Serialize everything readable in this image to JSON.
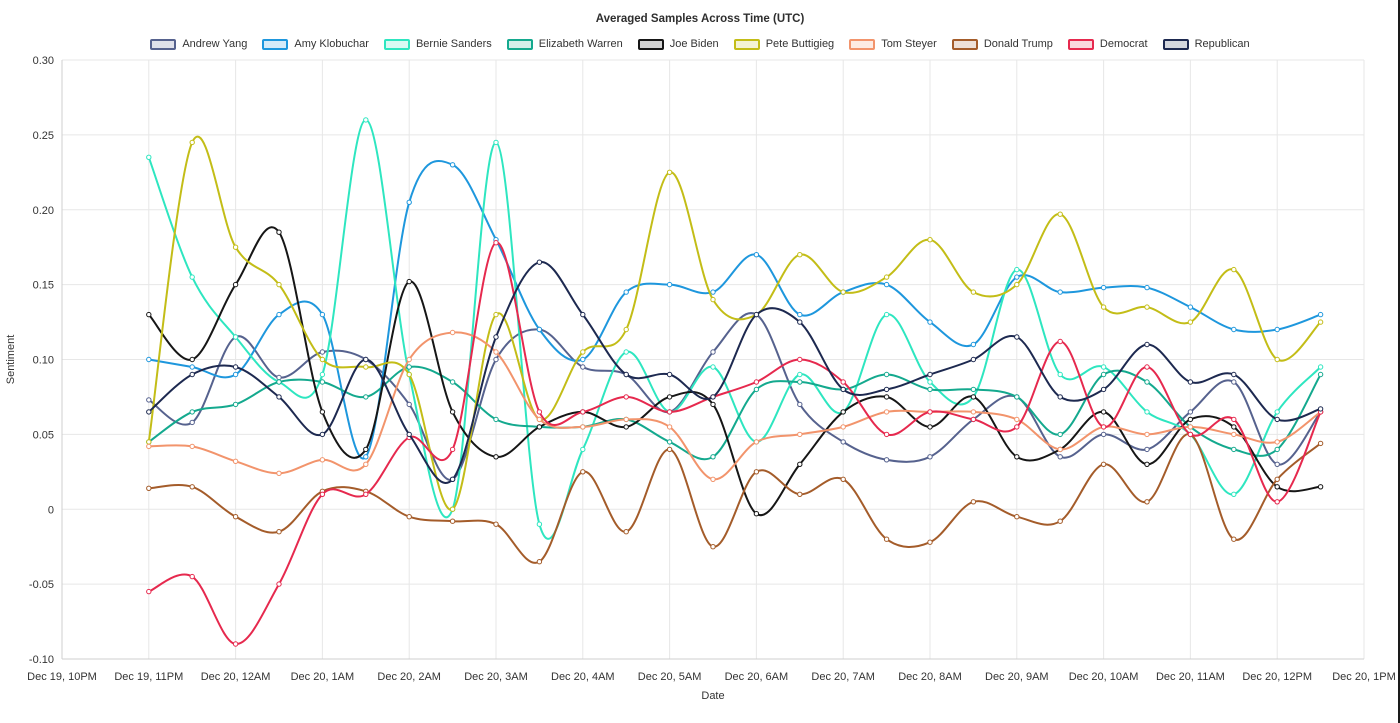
{
  "chart_data": {
    "type": "line",
    "title": "Averaged Samples Across Time (UTC)",
    "xlabel": "Date",
    "ylabel": "Sentiment",
    "ylim": [
      -0.1,
      0.3
    ],
    "grid": true,
    "legend_position": "top",
    "markers": true,
    "y_ticks": [
      {
        "value": 0.3,
        "label": "0.30"
      },
      {
        "value": 0.25,
        "label": "0.25"
      },
      {
        "value": 0.2,
        "label": "0.20"
      },
      {
        "value": 0.15,
        "label": "0.15"
      },
      {
        "value": 0.1,
        "label": "0.10"
      },
      {
        "value": 0.05,
        "label": "0.05"
      },
      {
        "value": 0.0,
        "label": "0"
      },
      {
        "value": -0.05,
        "label": "-0.05"
      },
      {
        "value": -0.1,
        "label": "-0.10"
      }
    ],
    "x_ticks": [
      {
        "hour": 22,
        "label": "Dec 19, 10PM"
      },
      {
        "hour": 23,
        "label": "Dec 19, 11PM"
      },
      {
        "hour": 24,
        "label": "Dec 20, 12AM"
      },
      {
        "hour": 25,
        "label": "Dec 20, 1AM"
      },
      {
        "hour": 26,
        "label": "Dec 20, 2AM"
      },
      {
        "hour": 27,
        "label": "Dec 20, 3AM"
      },
      {
        "hour": 28,
        "label": "Dec 20, 4AM"
      },
      {
        "hour": 29,
        "label": "Dec 20, 5AM"
      },
      {
        "hour": 30,
        "label": "Dec 20, 6AM"
      },
      {
        "hour": 31,
        "label": "Dec 20, 7AM"
      },
      {
        "hour": 32,
        "label": "Dec 20, 8AM"
      },
      {
        "hour": 33,
        "label": "Dec 20, 9AM"
      },
      {
        "hour": 34,
        "label": "Dec 20, 10AM"
      },
      {
        "hour": 35,
        "label": "Dec 20, 11AM"
      },
      {
        "hour": 36,
        "label": "Dec 20, 12PM"
      },
      {
        "hour": 37,
        "label": "Dec 20, 1PM"
      }
    ],
    "x_hours": [
      23,
      23.5,
      24,
      24.5,
      25,
      25.5,
      26,
      26.5,
      27,
      27.5,
      28,
      28.5,
      29,
      29.5,
      30,
      30.5,
      31,
      31.5,
      32,
      32.5,
      33,
      33.5,
      34,
      34.5,
      35,
      35.5,
      36,
      36.5
    ],
    "series": [
      {
        "name": "Andrew Yang",
        "color": "#56628e",
        "values": [
          0.073,
          0.058,
          0.115,
          0.088,
          0.105,
          0.1,
          0.07,
          0.02,
          0.1,
          0.12,
          0.095,
          0.09,
          0.065,
          0.105,
          0.13,
          0.07,
          0.045,
          0.033,
          0.035,
          0.06,
          0.075,
          0.035,
          0.05,
          0.04,
          0.065,
          0.085,
          0.03,
          0.065
        ]
      },
      {
        "name": "Amy Klobuchar",
        "color": "#1e97dd",
        "values": [
          0.1,
          0.095,
          0.09,
          0.13,
          0.13,
          0.035,
          0.205,
          0.23,
          0.18,
          0.12,
          0.1,
          0.145,
          0.15,
          0.145,
          0.17,
          0.13,
          0.145,
          0.15,
          0.125,
          0.11,
          0.155,
          0.145,
          0.148,
          0.148,
          0.135,
          0.12,
          0.12,
          0.13
        ]
      },
      {
        "name": "Bernie Sanders",
        "color": "#2ee6c0",
        "values": [
          0.235,
          0.155,
          0.115,
          0.085,
          0.09,
          0.26,
          0.09,
          0.0,
          0.245,
          -0.01,
          0.04,
          0.105,
          0.065,
          0.095,
          0.045,
          0.09,
          0.065,
          0.13,
          0.085,
          0.075,
          0.16,
          0.09,
          0.095,
          0.065,
          0.05,
          0.01,
          0.065,
          0.095
        ]
      },
      {
        "name": "Elizabeth Warren",
        "color": "#14a98e",
        "values": [
          0.045,
          0.065,
          0.07,
          0.085,
          0.085,
          0.075,
          0.095,
          0.085,
          0.06,
          0.055,
          0.055,
          0.06,
          0.045,
          0.035,
          0.08,
          0.085,
          0.08,
          0.09,
          0.08,
          0.08,
          0.075,
          0.05,
          0.09,
          0.085,
          0.055,
          0.04,
          0.04,
          0.09
        ]
      },
      {
        "name": "Joe Biden",
        "color": "#161616",
        "values": [
          0.13,
          0.1,
          0.15,
          0.185,
          0.065,
          0.04,
          0.152,
          0.065,
          0.035,
          0.055,
          0.065,
          0.055,
          0.075,
          0.07,
          -0.003,
          0.03,
          0.065,
          0.075,
          0.055,
          0.075,
          0.035,
          0.04,
          0.065,
          0.03,
          0.06,
          0.055,
          0.015,
          0.015
        ]
      },
      {
        "name": "Pete Buttigieg",
        "color": "#c3bd17",
        "values": [
          0.045,
          0.245,
          0.175,
          0.15,
          0.1,
          0.095,
          0.09,
          0.0,
          0.13,
          0.06,
          0.105,
          0.12,
          0.225,
          0.14,
          0.13,
          0.17,
          0.145,
          0.155,
          0.18,
          0.145,
          0.15,
          0.197,
          0.135,
          0.135,
          0.125,
          0.16,
          0.1,
          0.125
        ]
      },
      {
        "name": "Tom Steyer",
        "color": "#f2946c",
        "values": [
          0.042,
          0.042,
          0.032,
          0.024,
          0.033,
          0.03,
          0.1,
          0.118,
          0.105,
          0.06,
          0.055,
          0.06,
          0.055,
          0.02,
          0.045,
          0.05,
          0.055,
          0.065,
          0.065,
          0.065,
          0.06,
          0.04,
          0.055,
          0.05,
          0.055,
          0.05,
          0.045,
          0.065
        ]
      },
      {
        "name": "Donald Trump",
        "color": "#a45c2a",
        "values": [
          0.014,
          0.015,
          -0.005,
          -0.015,
          0.012,
          0.012,
          -0.005,
          -0.008,
          -0.01,
          -0.035,
          0.025,
          -0.015,
          0.04,
          -0.025,
          0.025,
          0.01,
          0.02,
          -0.02,
          -0.022,
          0.005,
          -0.005,
          -0.008,
          0.03,
          0.005,
          0.05,
          -0.02,
          0.02,
          0.044
        ]
      },
      {
        "name": "Democrat",
        "color": "#e6294e",
        "values": [
          -0.055,
          -0.045,
          -0.09,
          -0.05,
          0.01,
          0.01,
          0.048,
          0.04,
          0.178,
          0.065,
          0.065,
          0.075,
          0.065,
          0.075,
          0.085,
          0.1,
          0.085,
          0.05,
          0.065,
          0.06,
          0.055,
          0.112,
          0.055,
          0.095,
          0.05,
          0.06,
          0.005,
          0.065
        ]
      },
      {
        "name": "Republican",
        "color": "#1d2950",
        "values": [
          0.065,
          0.09,
          0.095,
          0.075,
          0.05,
          0.1,
          0.05,
          0.02,
          0.115,
          0.165,
          0.13,
          0.09,
          0.09,
          0.075,
          0.13,
          0.125,
          0.08,
          0.08,
          0.09,
          0.1,
          0.115,
          0.075,
          0.08,
          0.11,
          0.085,
          0.09,
          0.06,
          0.067
        ]
      }
    ]
  }
}
